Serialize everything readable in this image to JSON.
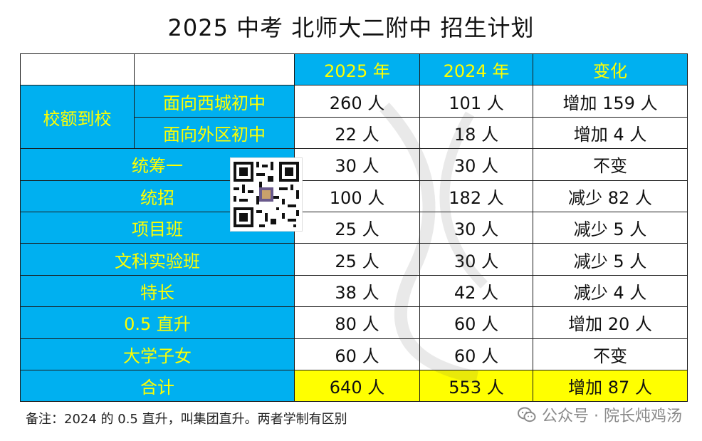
{
  "title": "2025 中考  北师大二附中  招生计划",
  "header": {
    "col_2025": "2025 年",
    "col_2024": "2024 年",
    "col_change": "变化"
  },
  "rows": [
    {
      "group": "校额到校",
      "label": "面向西城初中",
      "v2025": "260 人",
      "v2024": "101 人",
      "change": "增加 159 人"
    },
    {
      "label": "面向外区初中",
      "v2025": "22 人",
      "v2024": "18 人",
      "change": "增加 4 人"
    },
    {
      "label": "统筹一",
      "v2025": "30 人",
      "v2024": "30 人",
      "change": "不变"
    },
    {
      "label": "统招",
      "v2025": "100 人",
      "v2024": "182 人",
      "change": "减少 82 人"
    },
    {
      "label": "项目班",
      "v2025": "25 人",
      "v2024": "30 人",
      "change": "减少 5 人"
    },
    {
      "label": "文科实验班",
      "v2025": "25 人",
      "v2024": "30 人",
      "change": "减少 5 人"
    },
    {
      "label": "特长",
      "v2025": "38 人",
      "v2024": "42 人",
      "change": "减少 4 人"
    },
    {
      "label": "0.5 直升",
      "v2025": "80 人",
      "v2024": "60 人",
      "change": "增加 20 人"
    },
    {
      "label": "大学子女",
      "v2025": "60 人",
      "v2024": "60 人",
      "change": "不变"
    }
  ],
  "total": {
    "label": "合计",
    "v2025": "640 人",
    "v2024": "553 人",
    "change": "增加 87 人"
  },
  "note": "备注：2024 的 0.5 直升，叫集团直升。两者学制有区别",
  "source": "公众号 · 院长炖鸡汤",
  "colors": {
    "header_blue": "#00b0f0",
    "header_text": "#ffff00",
    "total_yellow": "#ffff00"
  },
  "icons": {
    "wechat": "wechat-icon",
    "qr": "qr-code-icon"
  }
}
